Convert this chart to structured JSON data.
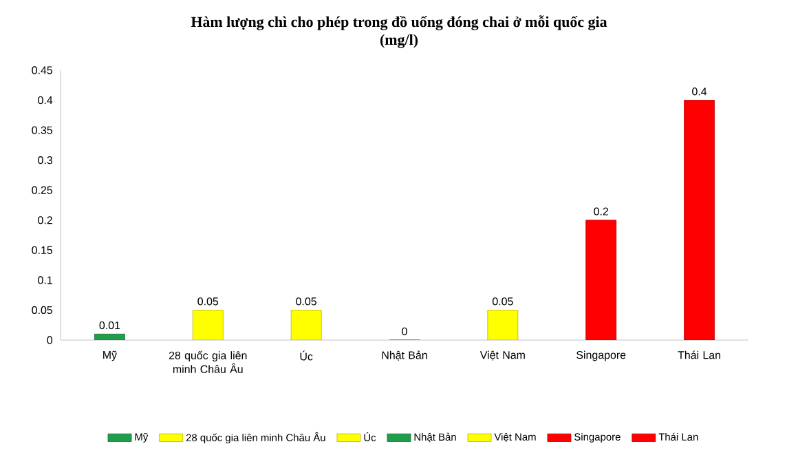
{
  "chart_data": {
    "type": "bar",
    "title": "Hàm lượng chì cho phép trong đồ uống đóng chai ở mỗi quốc gia",
    "subtitle": "(mg/l)",
    "categories": [
      "Mỹ",
      "28 quốc gia liên minh Châu Âu",
      "Úc",
      "Nhật Bản",
      "Việt Nam",
      "Singapore",
      "Thái Lan"
    ],
    "series": [
      {
        "name": "Mỹ",
        "color": "#1e9e4a",
        "values": [
          0.01,
          null,
          null,
          null,
          null,
          null,
          null
        ]
      },
      {
        "name": "28 quốc gia liên minh Châu Âu",
        "color": "#ffff00",
        "values": [
          null,
          0.05,
          null,
          null,
          null,
          null,
          null
        ]
      },
      {
        "name": "Úc",
        "color": "#ffff00",
        "values": [
          null,
          null,
          0.05,
          null,
          null,
          null,
          null
        ]
      },
      {
        "name": "Nhật Bản",
        "color": "#1e9e4a",
        "values": [
          null,
          null,
          null,
          0,
          null,
          null,
          null
        ]
      },
      {
        "name": "Việt Nam",
        "color": "#ffff00",
        "values": [
          null,
          null,
          null,
          null,
          0.05,
          null,
          null
        ]
      },
      {
        "name": "Singapore",
        "color": "#ff0000",
        "values": [
          null,
          null,
          null,
          null,
          null,
          0.2,
          null
        ]
      },
      {
        "name": "Thái Lan",
        "color": "#ff0000",
        "values": [
          null,
          null,
          null,
          null,
          null,
          null,
          0.4
        ]
      }
    ],
    "ylim": [
      0,
      0.45
    ],
    "yticks": [
      0,
      0.05,
      0.1,
      0.15,
      0.2,
      0.25,
      0.3,
      0.35,
      0.4,
      0.45
    ],
    "data_labels": true,
    "legend": "bottom",
    "grid": false
  }
}
